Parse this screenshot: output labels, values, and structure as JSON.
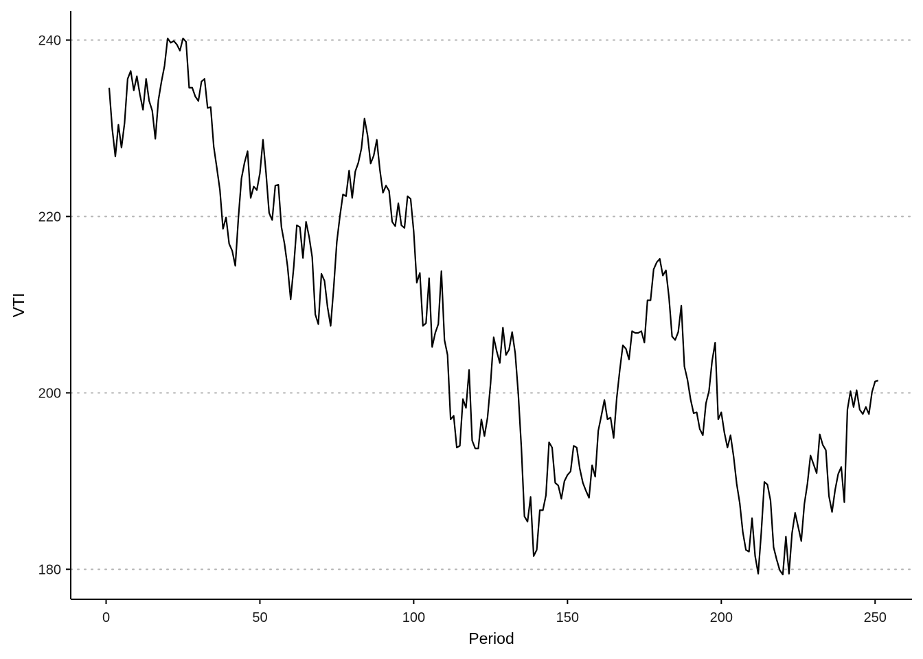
{
  "chart_data": {
    "type": "line",
    "title": "",
    "xlabel": "Period",
    "ylabel": "VTI",
    "xlim": [
      -11.5,
      262
    ],
    "ylim": [
      176.6,
      243.3
    ],
    "x_ticks": [
      0,
      50,
      100,
      150,
      200,
      250
    ],
    "y_ticks": [
      180,
      200,
      220,
      240
    ],
    "grid": "horizontal dotted major lines",
    "line_color": "#000000",
    "series": [
      {
        "x": [
          1,
          2,
          3,
          4,
          5,
          6,
          7,
          8,
          9,
          10,
          11,
          12,
          13,
          14,
          15,
          16,
          17,
          18,
          19,
          20,
          21,
          22,
          23,
          24,
          25,
          26,
          27,
          28,
          29,
          30,
          31,
          32,
          33,
          34,
          35,
          36,
          37,
          38,
          39,
          40,
          41,
          42,
          43,
          44,
          45,
          46,
          47,
          48,
          49,
          50,
          51,
          52,
          53,
          54,
          55,
          56,
          57,
          58,
          59,
          60,
          61,
          62,
          63,
          64,
          65,
          66,
          67,
          68,
          69,
          70,
          71,
          72,
          73,
          74,
          75,
          76,
          77,
          78,
          79,
          80,
          81,
          82,
          83,
          84,
          85,
          86,
          87,
          88,
          89,
          90,
          91,
          92,
          93,
          94,
          95,
          96,
          97,
          98,
          99,
          100,
          101,
          102,
          103,
          104,
          105,
          106,
          107,
          108,
          109,
          110,
          111,
          112,
          113,
          114,
          115,
          116,
          117,
          118,
          119,
          120,
          121,
          122,
          123,
          124,
          125,
          126,
          127,
          128,
          129,
          130,
          131,
          132,
          133,
          134,
          135,
          136,
          137,
          138,
          139,
          140,
          141,
          142,
          143,
          144,
          145,
          146,
          147,
          148,
          149,
          150,
          151,
          152,
          153,
          154,
          155,
          156,
          157,
          158,
          159,
          160,
          161,
          162,
          163,
          164,
          165,
          166,
          167,
          168,
          169,
          170,
          171,
          172,
          173,
          174,
          175,
          176,
          177,
          178,
          179,
          180,
          181,
          182,
          183,
          184,
          185,
          186,
          187,
          188,
          189,
          190,
          191,
          192,
          193,
          194,
          195,
          196,
          197,
          198,
          199,
          200,
          201,
          202,
          203,
          204,
          205,
          206,
          207,
          208,
          209,
          210,
          211,
          212,
          213,
          214,
          215,
          216,
          217,
          218,
          219,
          220,
          221,
          222,
          223,
          224,
          225,
          226,
          227,
          228,
          229,
          230,
          231,
          232,
          233,
          234,
          235,
          236,
          237,
          238,
          239,
          240,
          241,
          242,
          243,
          244,
          245,
          246,
          247,
          248,
          249,
          250,
          251
        ],
        "values": [
          234.6,
          229.9,
          226.8,
          230.4,
          227.8,
          230.6,
          235.6,
          236.5,
          234.3,
          235.9,
          233.8,
          232.1,
          235.6,
          233.1,
          232.0,
          228.8,
          233.2,
          235.3,
          237.1,
          240.2,
          239.7,
          239.9,
          239.5,
          238.8,
          240.2,
          239.8,
          234.6,
          234.6,
          233.6,
          233.1,
          235.3,
          235.6,
          232.3,
          232.4,
          227.9,
          225.5,
          223.0,
          218.6,
          219.9,
          216.9,
          216.1,
          214.4,
          219.8,
          224.3,
          226.1,
          227.4,
          222.1,
          223.4,
          223.0,
          224.9,
          228.7,
          224.9,
          220.4,
          219.6,
          223.5,
          223.6,
          218.8,
          216.9,
          214.3,
          210.6,
          214.3,
          219.0,
          218.8,
          215.3,
          219.4,
          217.7,
          215.4,
          208.9,
          207.8,
          213.5,
          212.7,
          209.7,
          207.6,
          212.0,
          217.1,
          220.0,
          222.5,
          222.3,
          225.2,
          222.1,
          225.1,
          226.1,
          227.7,
          231.1,
          229.2,
          226.0,
          226.9,
          228.7,
          225.3,
          222.7,
          223.5,
          222.9,
          219.4,
          218.9,
          221.5,
          219.0,
          218.7,
          222.3,
          222.0,
          218.3,
          212.5,
          213.6,
          207.6,
          207.9,
          213.0,
          205.2,
          206.8,
          207.8,
          213.8,
          206.0,
          204.3,
          197.0,
          197.4,
          193.8,
          194.0,
          199.3,
          198.3,
          202.6,
          194.6,
          193.7,
          193.7,
          197.0,
          195.1,
          197.2,
          201.1,
          206.3,
          204.7,
          203.4,
          207.4,
          204.3,
          204.9,
          206.9,
          204.5,
          199.9,
          193.8,
          186.0,
          185.4,
          188.2,
          181.5,
          182.2,
          186.7,
          186.7,
          188.4,
          194.4,
          193.8,
          189.8,
          189.5,
          188.0,
          190.0,
          190.7,
          191.1,
          194.0,
          193.8,
          191.4,
          189.8,
          188.9,
          188.1,
          191.8,
          190.5,
          195.7,
          197.4,
          199.2,
          197.0,
          197.2,
          194.9,
          199.4,
          202.6,
          205.4,
          205.0,
          203.8,
          207.0,
          206.8,
          206.8,
          207.0,
          205.7,
          210.5,
          210.5,
          214.0,
          214.8,
          215.2,
          213.3,
          213.9,
          210.8,
          206.4,
          206.0,
          206.9,
          209.9,
          203.0,
          201.5,
          199.3,
          197.7,
          197.8,
          195.9,
          195.2,
          198.8,
          200.2,
          203.6,
          205.7,
          197.0,
          197.8,
          195.5,
          193.8,
          195.2,
          192.8,
          189.7,
          187.5,
          184.2,
          182.2,
          182.0,
          185.8,
          181.5,
          179.5,
          184.2,
          189.9,
          189.6,
          187.8,
          182.5,
          181.1,
          179.9,
          179.4,
          183.7,
          179.5,
          184.1,
          186.4,
          184.8,
          183.2,
          187.4,
          189.7,
          192.9,
          191.9,
          190.9,
          195.3,
          194.1,
          193.5,
          188.3,
          186.5,
          189.0,
          190.8,
          191.6,
          187.6,
          198.1,
          200.2,
          198.4,
          200.3,
          198.1,
          197.6,
          198.4,
          197.6,
          200.1,
          201.3,
          201.4
        ]
      }
    ]
  }
}
